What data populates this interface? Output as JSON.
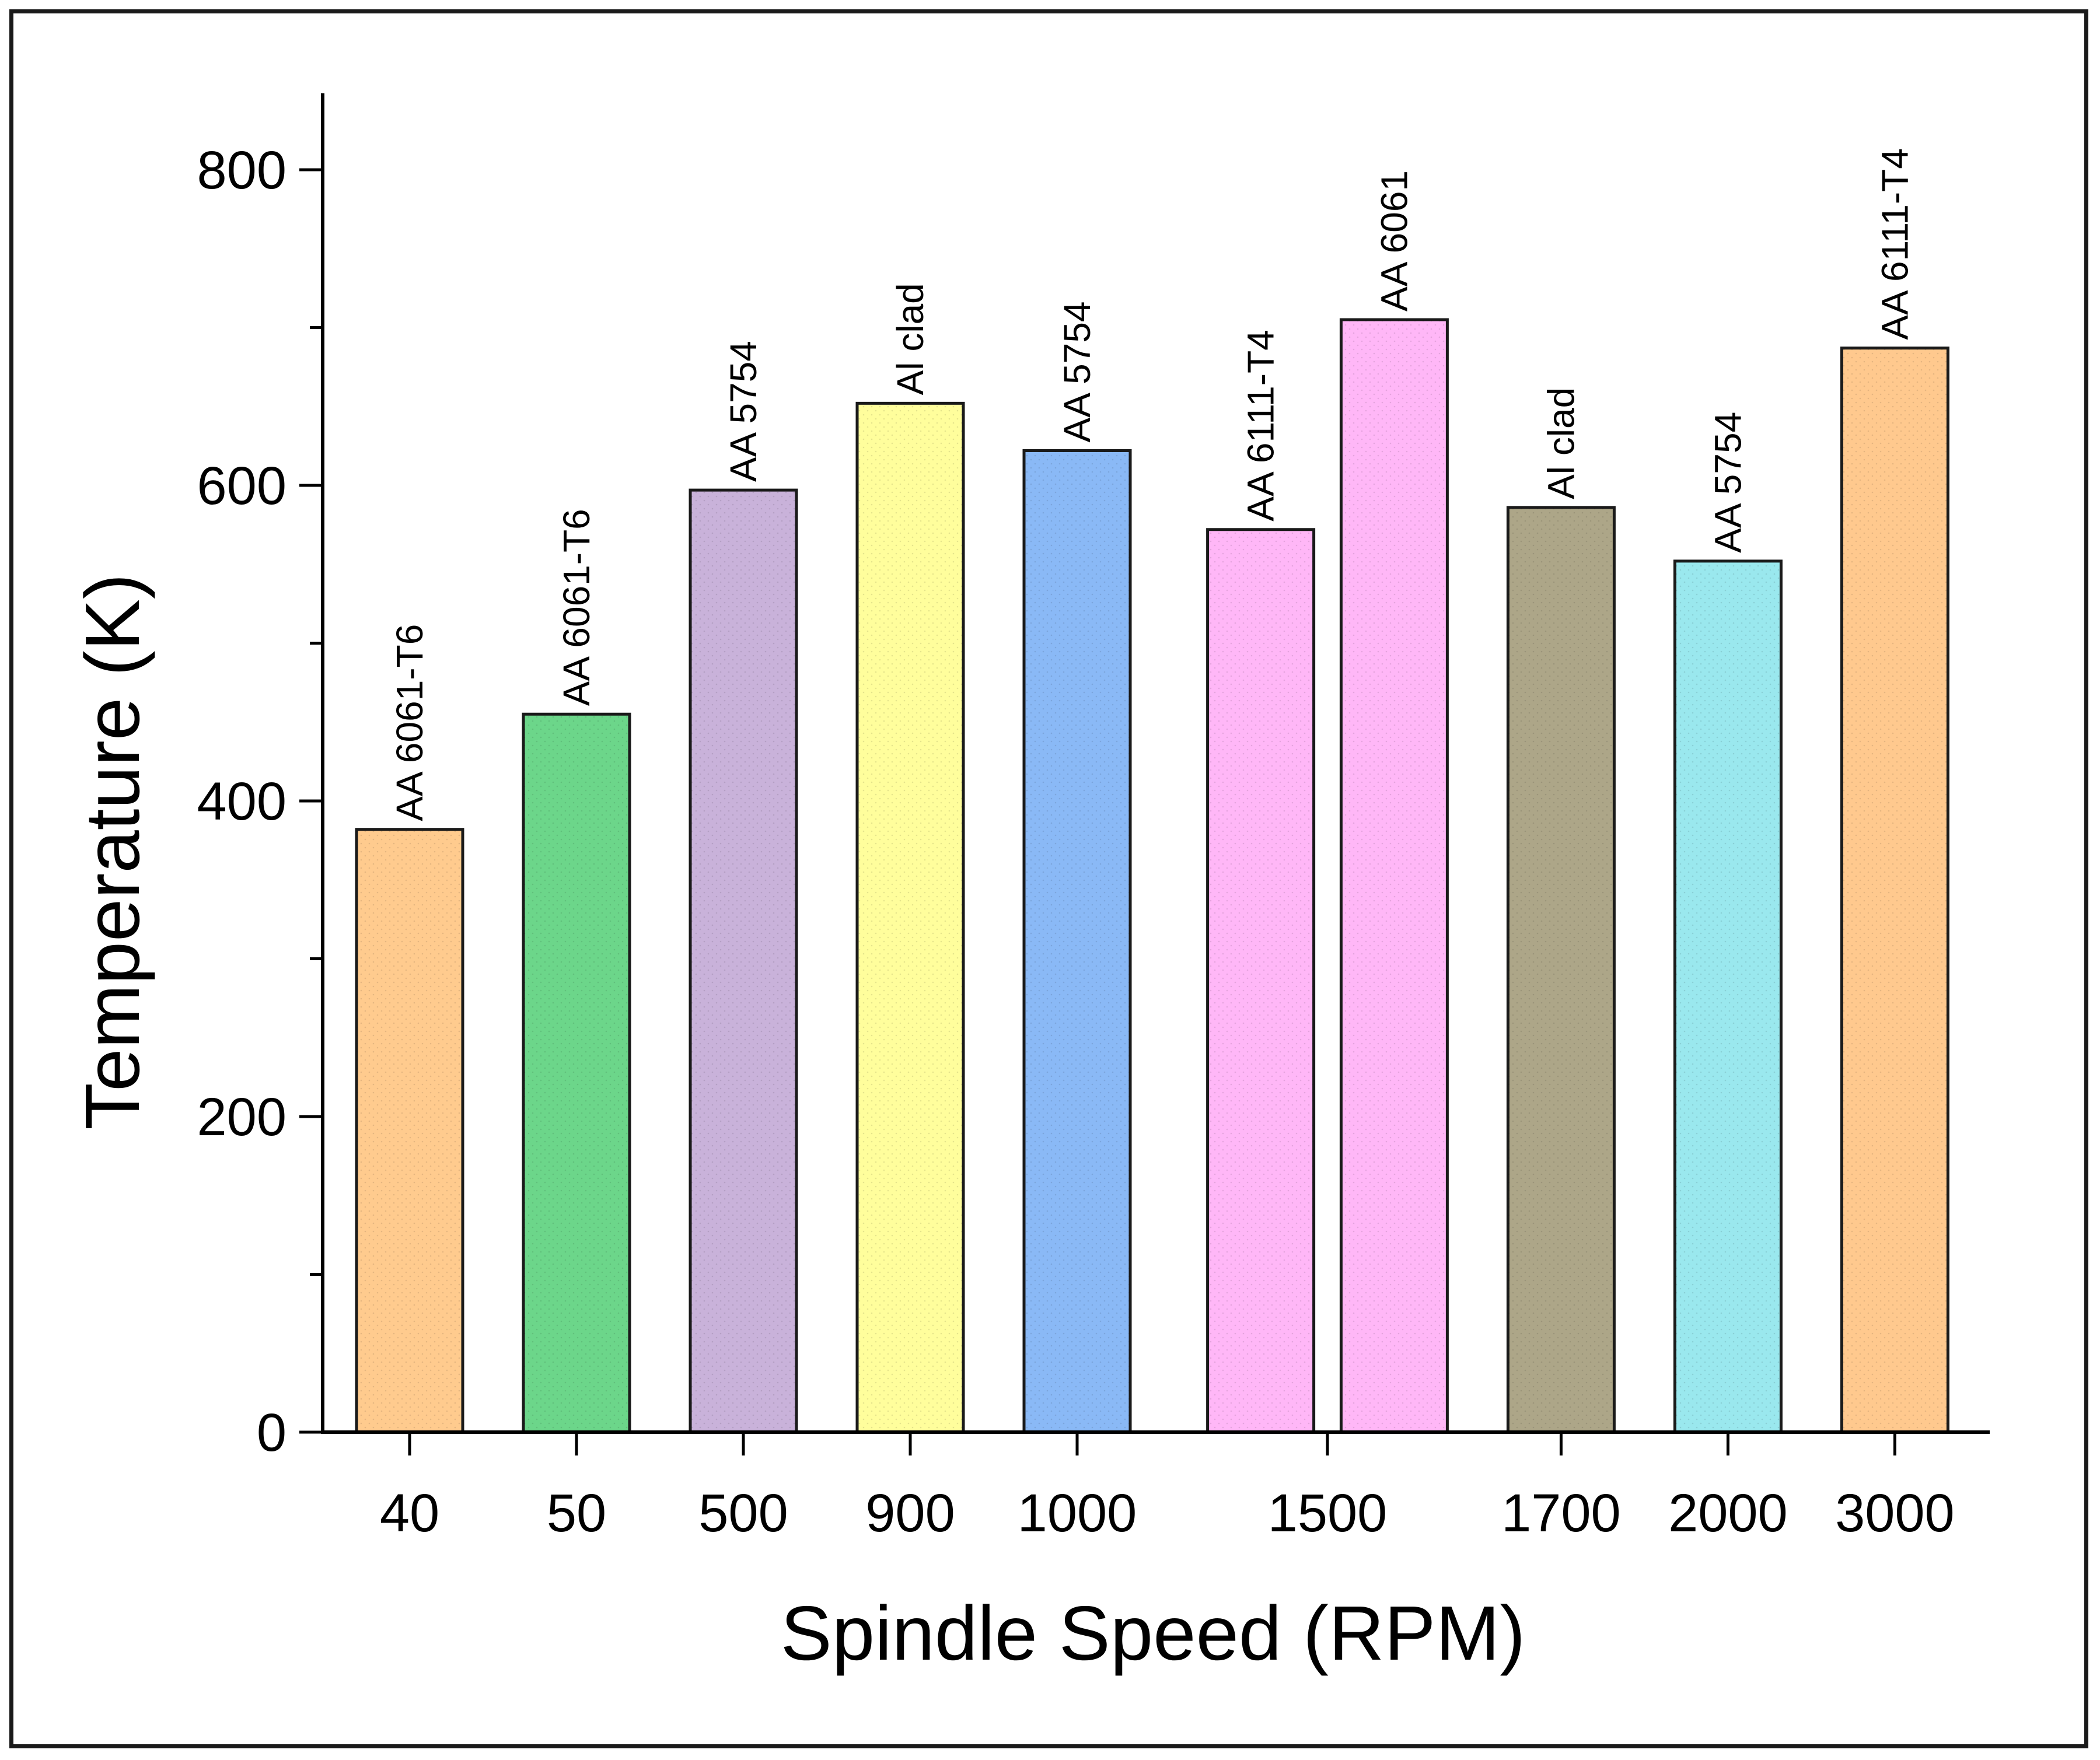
{
  "chart_data": {
    "type": "bar",
    "xlabel": "Spindle Speed (RPM)",
    "ylabel": "Temperature (K)",
    "ylim": [
      0,
      850
    ],
    "yticks": [
      0,
      200,
      400,
      600,
      800
    ],
    "yminor_step": 100,
    "ticks": [
      {
        "label": "40",
        "at": 1
      },
      {
        "label": "50",
        "at": 2
      },
      {
        "label": "500",
        "at": 3
      },
      {
        "label": "900",
        "at": 4
      },
      {
        "label": "1000",
        "at": 5
      },
      {
        "label": "1500",
        "at": 6.5
      },
      {
        "label": "1700",
        "at": 7.9
      },
      {
        "label": "2000",
        "at": 8.9
      },
      {
        "label": "3000",
        "at": 9.9
      }
    ],
    "bars": [
      {
        "speed": "40",
        "pos": 1,
        "value": 382,
        "material": "AA 6061-T6",
        "color": "#FFCB8E"
      },
      {
        "speed": "50",
        "pos": 2,
        "value": 455,
        "material": "AA 6061-T6",
        "color": "#6CD68A"
      },
      {
        "speed": "500",
        "pos": 3,
        "value": 597,
        "material": "AA 5754",
        "color": "#C9B2DA"
      },
      {
        "speed": "900",
        "pos": 4,
        "value": 652,
        "material": "Al clad",
        "color": "#FFFE9C"
      },
      {
        "speed": "1000",
        "pos": 5,
        "value": 622,
        "material": "AA 5754",
        "color": "#8AB9F6"
      },
      {
        "speed": "1500",
        "pos": 6.1,
        "value": 572,
        "material": "AA 6111-T4",
        "color": "#FFB7F7"
      },
      {
        "speed": "1500",
        "pos": 6.9,
        "value": 705,
        "material": "AA 6061",
        "color": "#FFB7F7"
      },
      {
        "speed": "1700",
        "pos": 7.9,
        "value": 586,
        "material": "Al clad",
        "color": "#ADA688"
      },
      {
        "speed": "2000",
        "pos": 8.9,
        "value": 552,
        "material": "AA 5754",
        "color": "#9AE8EE"
      },
      {
        "speed": "3000",
        "pos": 9.9,
        "value": 687,
        "material": "AA 6111-T4",
        "color": "#FFC98E"
      }
    ]
  }
}
